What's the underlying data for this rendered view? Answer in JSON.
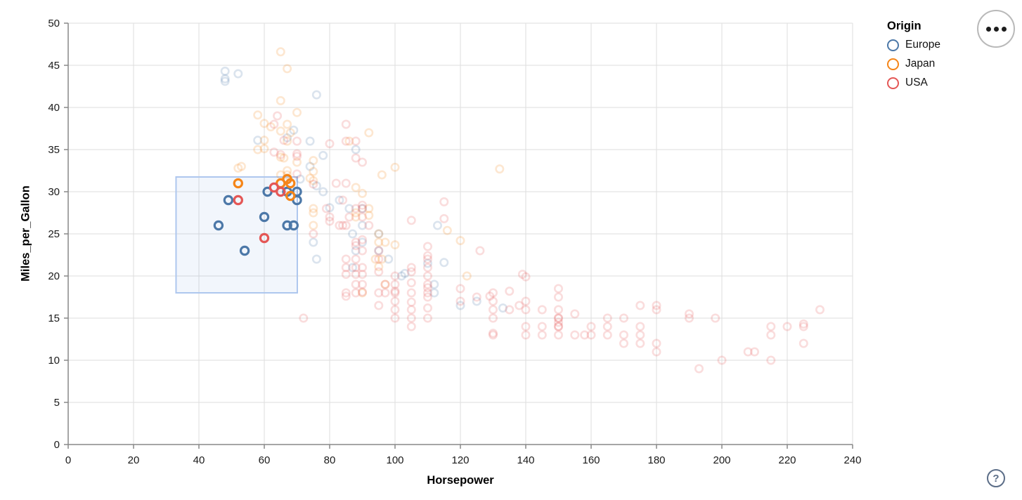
{
  "controls": {
    "menu_icon": "ellipsis-icon",
    "help_label": "?"
  },
  "chart_data": {
    "type": "scatter",
    "title": "",
    "xlabel": "Horsepower",
    "ylabel": "Miles_per_Gallon",
    "xlim": [
      0,
      240
    ],
    "ylim": [
      0,
      50
    ],
    "x_ticks": [
      0,
      20,
      40,
      60,
      80,
      100,
      120,
      140,
      160,
      180,
      200,
      220,
      240
    ],
    "y_ticks": [
      0,
      5,
      10,
      15,
      20,
      25,
      30,
      35,
      40,
      45,
      50
    ],
    "grid": true,
    "legend": {
      "title": "Origin",
      "position": "right",
      "entries": [
        {
          "label": "Europe",
          "color": "#4c78a8"
        },
        {
          "label": "Japan",
          "color": "#f58518"
        },
        {
          "label": "USA",
          "color": "#e45756"
        }
      ]
    },
    "colors": {
      "Europe": "#4c78a8",
      "Japan": "#f58518",
      "USA": "#e45756",
      "grid": "#dddddd",
      "axis": "#888888",
      "label": "#1a1a1a",
      "brush_fill": "rgba(90,135,220,0.08)",
      "brush_stroke": "#aec7ee"
    },
    "brush_selection": {
      "hp": [
        33,
        70.1
      ],
      "mpg": [
        18,
        31.75
      ]
    },
    "unselected_opacity": 0.2,
    "origin_codes": {
      "E": "Europe",
      "J": "Japan",
      "U": "USA"
    },
    "points": [
      [
        46,
        26,
        "E"
      ],
      [
        49,
        29,
        "E"
      ],
      [
        54,
        23,
        "E"
      ],
      [
        60,
        27,
        "E"
      ],
      [
        61,
        30,
        "E"
      ],
      [
        67,
        26,
        "E"
      ],
      [
        67,
        30,
        "E"
      ],
      [
        69,
        26,
        "E"
      ],
      [
        70,
        29,
        "E"
      ],
      [
        70,
        30,
        "E"
      ],
      [
        48,
        43.1,
        "E"
      ],
      [
        48,
        43.4,
        "E"
      ],
      [
        48,
        44.3,
        "E"
      ],
      [
        52,
        44,
        "E"
      ],
      [
        58,
        36.1,
        "E"
      ],
      [
        67,
        36.4,
        "E"
      ],
      [
        69,
        37.3,
        "E"
      ],
      [
        71,
        31.5,
        "E"
      ],
      [
        74,
        33,
        "E"
      ],
      [
        74,
        36,
        "E"
      ],
      [
        75,
        24,
        "E"
      ],
      [
        76,
        22,
        "E"
      ],
      [
        76,
        30.7,
        "E"
      ],
      [
        76,
        41.5,
        "E"
      ],
      [
        78,
        30,
        "E"
      ],
      [
        78,
        34.3,
        "E"
      ],
      [
        80,
        28.1,
        "E"
      ],
      [
        83,
        29,
        "E"
      ],
      [
        86,
        28,
        "E"
      ],
      [
        87,
        21,
        "E"
      ],
      [
        87,
        25,
        "E"
      ],
      [
        88,
        23,
        "E"
      ],
      [
        88,
        35,
        "E"
      ],
      [
        90,
        24,
        "E"
      ],
      [
        90,
        26,
        "E"
      ],
      [
        90,
        28,
        "E"
      ],
      [
        95,
        23,
        "E"
      ],
      [
        95,
        25,
        "E"
      ],
      [
        98,
        22,
        "E"
      ],
      [
        102,
        20,
        "E"
      ],
      [
        103,
        20.3,
        "E"
      ],
      [
        110,
        21.5,
        "E"
      ],
      [
        112,
        18,
        "E"
      ],
      [
        112,
        19,
        "E"
      ],
      [
        113,
        26,
        "E"
      ],
      [
        115,
        21.6,
        "E"
      ],
      [
        120,
        16.5,
        "E"
      ],
      [
        125,
        17,
        "E"
      ],
      [
        133,
        16.2,
        "E"
      ],
      [
        52,
        31,
        "J"
      ],
      [
        65,
        31,
        "J"
      ],
      [
        67,
        31.5,
        "J"
      ],
      [
        68,
        31,
        "J"
      ],
      [
        68,
        29.5,
        "J"
      ],
      [
        52,
        32.8,
        "J"
      ],
      [
        53,
        33,
        "J"
      ],
      [
        58,
        35,
        "J"
      ],
      [
        58,
        39.1,
        "J"
      ],
      [
        60,
        35.1,
        "J"
      ],
      [
        60,
        36.1,
        "J"
      ],
      [
        60,
        38.1,
        "J"
      ],
      [
        62,
        37.7,
        "J"
      ],
      [
        65,
        32,
        "J"
      ],
      [
        65,
        34.1,
        "J"
      ],
      [
        65,
        37.2,
        "J"
      ],
      [
        65,
        40.8,
        "J"
      ],
      [
        65,
        46.6,
        "J"
      ],
      [
        66,
        34,
        "J"
      ],
      [
        67,
        32,
        "J"
      ],
      [
        67,
        32.5,
        "J"
      ],
      [
        67,
        36,
        "J"
      ],
      [
        67,
        38,
        "J"
      ],
      [
        67,
        44.6,
        "J"
      ],
      [
        68,
        37,
        "J"
      ],
      [
        70,
        33.5,
        "J"
      ],
      [
        70,
        39.4,
        "J"
      ],
      [
        74,
        31.6,
        "J"
      ],
      [
        75,
        26,
        "J"
      ],
      [
        75,
        27.5,
        "J"
      ],
      [
        75,
        28,
        "J"
      ],
      [
        75,
        31.3,
        "J"
      ],
      [
        75,
        32.4,
        "J"
      ],
      [
        75,
        33.7,
        "J"
      ],
      [
        86,
        36,
        "J"
      ],
      [
        88,
        27,
        "J"
      ],
      [
        88,
        27.5,
        "J"
      ],
      [
        88,
        30.5,
        "J"
      ],
      [
        90,
        18,
        "J"
      ],
      [
        90,
        29.8,
        "J"
      ],
      [
        92,
        27.2,
        "J"
      ],
      [
        92,
        28,
        "J"
      ],
      [
        92,
        37,
        "J"
      ],
      [
        94,
        22,
        "J"
      ],
      [
        95,
        21.1,
        "J"
      ],
      [
        95,
        24,
        "J"
      ],
      [
        95,
        25,
        "J"
      ],
      [
        96,
        22,
        "J"
      ],
      [
        96,
        32,
        "J"
      ],
      [
        97,
        19,
        "J"
      ],
      [
        97,
        24,
        "J"
      ],
      [
        100,
        23.7,
        "J"
      ],
      [
        100,
        32.9,
        "J"
      ],
      [
        116,
        25.4,
        "J"
      ],
      [
        120,
        24.2,
        "J"
      ],
      [
        122,
        20,
        "J"
      ],
      [
        132,
        32.7,
        "J"
      ],
      [
        52,
        29,
        "U"
      ],
      [
        60,
        24.5,
        "U"
      ],
      [
        63,
        30.5,
        "U"
      ],
      [
        65,
        30,
        "U"
      ],
      [
        63,
        34.7,
        "U"
      ],
      [
        63,
        38,
        "U"
      ],
      [
        64,
        39,
        "U"
      ],
      [
        65,
        34.4,
        "U"
      ],
      [
        66,
        36.1,
        "U"
      ],
      [
        70,
        32.1,
        "U"
      ],
      [
        70,
        34.2,
        "U"
      ],
      [
        70,
        34.5,
        "U"
      ],
      [
        70,
        36,
        "U"
      ],
      [
        72,
        15,
        "U"
      ],
      [
        75,
        25,
        "U"
      ],
      [
        75,
        30.9,
        "U"
      ],
      [
        79,
        28,
        "U"
      ],
      [
        80,
        26.5,
        "U"
      ],
      [
        80,
        27,
        "U"
      ],
      [
        80,
        35.7,
        "U"
      ],
      [
        82,
        31,
        "U"
      ],
      [
        83,
        26,
        "U"
      ],
      [
        84,
        26,
        "U"
      ],
      [
        84,
        29,
        "U"
      ],
      [
        85,
        17.6,
        "U"
      ],
      [
        85,
        18,
        "U"
      ],
      [
        85,
        20.2,
        "U"
      ],
      [
        85,
        21,
        "U"
      ],
      [
        85,
        22,
        "U"
      ],
      [
        85,
        26,
        "U"
      ],
      [
        85,
        31,
        "U"
      ],
      [
        85,
        36,
        "U"
      ],
      [
        85,
        38,
        "U"
      ],
      [
        86,
        27,
        "U"
      ],
      [
        88,
        18,
        "U"
      ],
      [
        88,
        19,
        "U"
      ],
      [
        88,
        20.2,
        "U"
      ],
      [
        88,
        21,
        "U"
      ],
      [
        88,
        22,
        "U"
      ],
      [
        88,
        23.6,
        "U"
      ],
      [
        88,
        24,
        "U"
      ],
      [
        88,
        28,
        "U"
      ],
      [
        88,
        34,
        "U"
      ],
      [
        88,
        36,
        "U"
      ],
      [
        90,
        18.1,
        "U"
      ],
      [
        90,
        19,
        "U"
      ],
      [
        90,
        20.2,
        "U"
      ],
      [
        90,
        21,
        "U"
      ],
      [
        90,
        23,
        "U"
      ],
      [
        90,
        24.3,
        "U"
      ],
      [
        90,
        27,
        "U"
      ],
      [
        90,
        28,
        "U"
      ],
      [
        90,
        28.4,
        "U"
      ],
      [
        90,
        33.5,
        "U"
      ],
      [
        92,
        26,
        "U"
      ],
      [
        95,
        16.5,
        "U"
      ],
      [
        95,
        18,
        "U"
      ],
      [
        95,
        20.5,
        "U"
      ],
      [
        95,
        22,
        "U"
      ],
      [
        95,
        23,
        "U"
      ],
      [
        97,
        18,
        "U"
      ],
      [
        97,
        19,
        "U"
      ],
      [
        100,
        15,
        "U"
      ],
      [
        100,
        16,
        "U"
      ],
      [
        100,
        17,
        "U"
      ],
      [
        100,
        18,
        "U"
      ],
      [
        100,
        18.2,
        "U"
      ],
      [
        100,
        19,
        "U"
      ],
      [
        100,
        20,
        "U"
      ],
      [
        105,
        14,
        "U"
      ],
      [
        105,
        15,
        "U"
      ],
      [
        105,
        16,
        "U"
      ],
      [
        105,
        16.9,
        "U"
      ],
      [
        105,
        18,
        "U"
      ],
      [
        105,
        19.2,
        "U"
      ],
      [
        105,
        20.5,
        "U"
      ],
      [
        105,
        21,
        "U"
      ],
      [
        105,
        26.6,
        "U"
      ],
      [
        110,
        15,
        "U"
      ],
      [
        110,
        16.2,
        "U"
      ],
      [
        110,
        17.5,
        "U"
      ],
      [
        110,
        18,
        "U"
      ],
      [
        110,
        18.6,
        "U"
      ],
      [
        110,
        19,
        "U"
      ],
      [
        110,
        20,
        "U"
      ],
      [
        110,
        21,
        "U"
      ],
      [
        110,
        22,
        "U"
      ],
      [
        110,
        22.4,
        "U"
      ],
      [
        110,
        23.5,
        "U"
      ],
      [
        115,
        26.8,
        "U"
      ],
      [
        115,
        28.8,
        "U"
      ],
      [
        120,
        17,
        "U"
      ],
      [
        120,
        18.5,
        "U"
      ],
      [
        125,
        17.5,
        "U"
      ],
      [
        126,
        23,
        "U"
      ],
      [
        129,
        17.6,
        "U"
      ],
      [
        130,
        13,
        "U"
      ],
      [
        130,
        13.2,
        "U"
      ],
      [
        130,
        15,
        "U"
      ],
      [
        130,
        16,
        "U"
      ],
      [
        130,
        17,
        "U"
      ],
      [
        130,
        18,
        "U"
      ],
      [
        135,
        16,
        "U"
      ],
      [
        135,
        18.2,
        "U"
      ],
      [
        138,
        16.5,
        "U"
      ],
      [
        139,
        20.2,
        "U"
      ],
      [
        140,
        13,
        "U"
      ],
      [
        140,
        14,
        "U"
      ],
      [
        140,
        16,
        "U"
      ],
      [
        140,
        17,
        "U"
      ],
      [
        140,
        19.9,
        "U"
      ],
      [
        145,
        13,
        "U"
      ],
      [
        145,
        14,
        "U"
      ],
      [
        145,
        16,
        "U"
      ],
      [
        150,
        13,
        "U"
      ],
      [
        150,
        14,
        "U"
      ],
      [
        150,
        14,
        "U"
      ],
      [
        150,
        14.5,
        "U"
      ],
      [
        150,
        15,
        "U"
      ],
      [
        150,
        15,
        "U"
      ],
      [
        150,
        16,
        "U"
      ],
      [
        150,
        17.5,
        "U"
      ],
      [
        150,
        18.5,
        "U"
      ],
      [
        155,
        13,
        "U"
      ],
      [
        155,
        15.5,
        "U"
      ],
      [
        158,
        13,
        "U"
      ],
      [
        160,
        13,
        "U"
      ],
      [
        160,
        14,
        "U"
      ],
      [
        165,
        13,
        "U"
      ],
      [
        165,
        14,
        "U"
      ],
      [
        165,
        15,
        "U"
      ],
      [
        170,
        12,
        "U"
      ],
      [
        170,
        13,
        "U"
      ],
      [
        170,
        15,
        "U"
      ],
      [
        175,
        12,
        "U"
      ],
      [
        175,
        13,
        "U"
      ],
      [
        175,
        14,
        "U"
      ],
      [
        175,
        16.5,
        "U"
      ],
      [
        180,
        11,
        "U"
      ],
      [
        180,
        12,
        "U"
      ],
      [
        180,
        16,
        "U"
      ],
      [
        180,
        16.5,
        "U"
      ],
      [
        190,
        15,
        "U"
      ],
      [
        190,
        15.5,
        "U"
      ],
      [
        193,
        9,
        "U"
      ],
      [
        198,
        15,
        "U"
      ],
      [
        200,
        10,
        "U"
      ],
      [
        208,
        11,
        "U"
      ],
      [
        210,
        11,
        "U"
      ],
      [
        215,
        10,
        "U"
      ],
      [
        215,
        13,
        "U"
      ],
      [
        215,
        14,
        "U"
      ],
      [
        220,
        14,
        "U"
      ],
      [
        225,
        12,
        "U"
      ],
      [
        225,
        14,
        "U"
      ],
      [
        225,
        14.3,
        "U"
      ],
      [
        230,
        16,
        "U"
      ]
    ]
  }
}
